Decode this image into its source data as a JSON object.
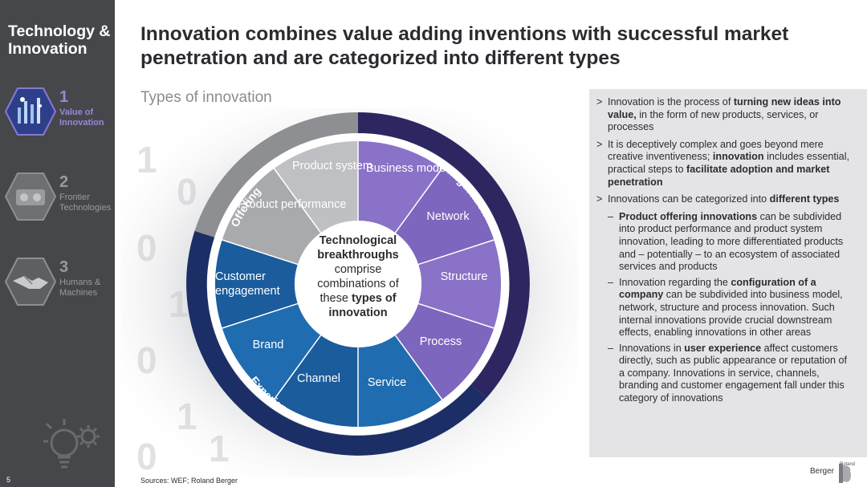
{
  "sidebar": {
    "title": "Technology & Innovation",
    "items": [
      {
        "num": "1",
        "label": "Value of Innovation"
      },
      {
        "num": "2",
        "label": "Frontier Technologies"
      },
      {
        "num": "3",
        "label": "Humans & Machines"
      }
    ],
    "page_number": "5"
  },
  "header": {
    "title": "Innovation combines value adding inventions with successful market penetration and are categorized into different types",
    "subtitle": "Types of innovation"
  },
  "diagram": {
    "center": {
      "line1": "Technological",
      "line2": "breakthroughs",
      "line3": "comprise",
      "line4": "combinations of",
      "line5a": "these ",
      "line5b": "types of",
      "line6": "innovation"
    },
    "rings": {
      "offering": "Offering",
      "configuration": "Configuration",
      "experience": "Experience"
    },
    "segments": {
      "product_system": "Product system",
      "product_performance": "Product performance",
      "business_model": "Business model",
      "network": "Network",
      "structure": "Structure",
      "process": "Process",
      "service": "Service",
      "channel": "Channel",
      "brand": "Brand",
      "customer_engagement": "Customer engagement"
    },
    "colors": {
      "offering": "#a9aaae",
      "configuration": "#7a64b8",
      "experience": "#1c5fa0",
      "offering_ring": "#8e8f93",
      "configuration_ring": "#2d2660",
      "experience_ring": "#1b2e66"
    }
  },
  "panel": {
    "b1_pre": "Innovation is the process of ",
    "b1_bold": "turning new ideas into value,",
    "b1_post": " in the form of new products, services, or processes",
    "b2_pre": "It is deceptively complex and goes beyond mere creative inventiveness; ",
    "b2_bold1": "innovation",
    "b2_mid": " includes essential, practical steps to ",
    "b2_bold2": "facilitate adoption and market penetration",
    "b3_pre": "Innovations can be categorized into ",
    "b3_bold": "different types",
    "s1_bold": "Product offering innovations",
    "s1_post": " can be subdivided into product performance and product system innovation, leading to more differentiated products and – potentially – to an ecosystem of associated services and products",
    "s2_pre": "Innovation regarding the ",
    "s2_bold": "configuration of a company",
    "s2_post": " can be subdivided into business model, network, structure and process innovation. Such internal innovations provide crucial downstream effects, enabling innovations in other areas",
    "s3_pre": "Innovations in ",
    "s3_bold": "user experience",
    "s3_post": " affect customers directly, such as public appearance or reputation of a company. Innovations in service, channels, branding and customer engagement fall under this category of innovations",
    "marker": ">",
    "dash": "–"
  },
  "footer": {
    "sources": "Sources: WEF; Roland Berger",
    "logo_small": "Roland",
    "logo_text": "Berger"
  }
}
